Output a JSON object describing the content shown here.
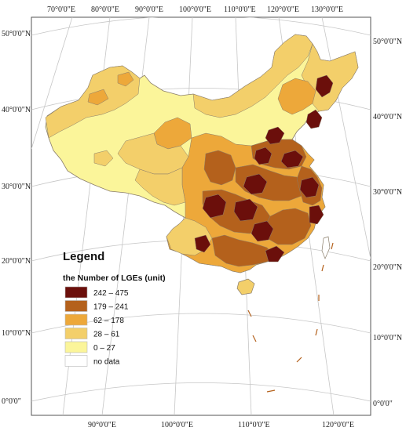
{
  "map": {
    "top_ticks": [
      "70°0'0\"E",
      "80°0'0\"E",
      "90°0'0\"E",
      "100°0'0\"E",
      "110°0'0\"E",
      "120°0'0\"E",
      "130°0'0\"E"
    ],
    "bottom_ticks": [
      "90°0'0\"E",
      "100°0'0\"E",
      "110°0'0\"E",
      "120°0'0\"E"
    ],
    "left_ticks": [
      "50°0'0\"N",
      "40°0'0\"N",
      "30°0'0\"N",
      "20°0'0\"N",
      "10°0'0\"N",
      "0°0'0\""
    ],
    "right_ticks": [
      "50°0'0\"N",
      "40°0'0\"N",
      "30°0'0\"N",
      "20°0'0\"N",
      "10°0'0\"N",
      "0°0'0\""
    ]
  },
  "legend": {
    "title": "Legend",
    "subtitle": "the Number of LGEs (unit)",
    "classes": [
      {
        "label": "242 – 475",
        "color": "#6b0f0b"
      },
      {
        "label": "179 – 241",
        "color": "#b4611c"
      },
      {
        "label": "62 – 178",
        "color": "#eda83a"
      },
      {
        "label": "28 – 61",
        "color": "#f3cf6a"
      },
      {
        "label": "0 – 27",
        "color": "#fbf59a"
      },
      {
        "label": "no data",
        "color": "#ffffff"
      }
    ]
  },
  "colors": {
    "c1": "#6b0f0b",
    "c2": "#b4611c",
    "c3": "#eda83a",
    "c4": "#f3cf6a",
    "c5": "#fbf59a",
    "border": "#8a7d6a",
    "grid": "#bdbdbd"
  }
}
